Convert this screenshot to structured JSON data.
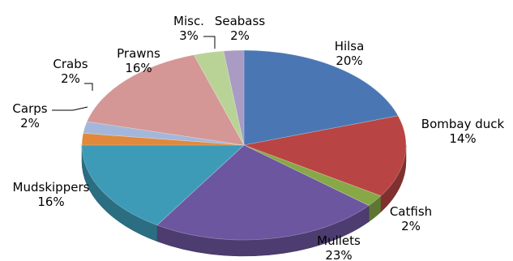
{
  "chart_data": {
    "type": "pie",
    "style": "3d",
    "legend": "none",
    "categories": [
      "Hilsa",
      "Bombay duck",
      "Catfish",
      "Mullets",
      "Mudskippers",
      "Carps",
      "Crabs",
      "Prawns",
      "Misc.",
      "Seabass"
    ],
    "values": [
      20,
      14,
      2,
      23,
      16,
      2,
      2,
      16,
      3,
      2
    ],
    "percent_labels": [
      "20%",
      "14%",
      "2%",
      "23%",
      "16%",
      "2%",
      "2%",
      "16%",
      "3%",
      "2%"
    ],
    "colors": [
      "#4a77b4",
      "#b84543",
      "#86a846",
      "#6d56a0",
      "#3e9bb8",
      "#e0893c",
      "#a4b7da",
      "#d49795",
      "#b9d397",
      "#a99bc4"
    ],
    "title": "",
    "subtitle": ""
  }
}
